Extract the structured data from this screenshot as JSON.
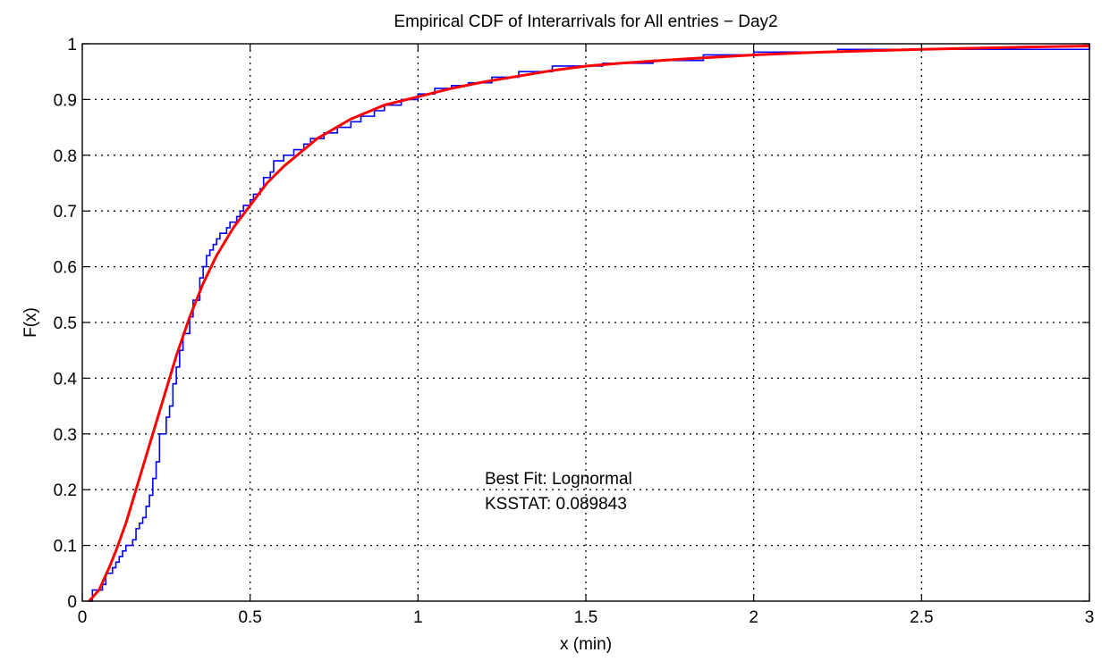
{
  "chart_data": {
    "type": "line",
    "title": "Empirical CDF of Interarrivals for All entries − Day2",
    "xlabel": "x (min)",
    "ylabel": "F(x)",
    "xlim": [
      0,
      3
    ],
    "ylim": [
      0,
      1
    ],
    "grid": true,
    "xticks": [
      {
        "value": 0,
        "label": "0"
      },
      {
        "value": 0.5,
        "label": "0.5"
      },
      {
        "value": 1,
        "label": "1"
      },
      {
        "value": 1.5,
        "label": "1.5"
      },
      {
        "value": 2,
        "label": "2"
      },
      {
        "value": 2.5,
        "label": "2.5"
      },
      {
        "value": 3,
        "label": "3"
      }
    ],
    "yticks": [
      {
        "value": 0,
        "label": "0"
      },
      {
        "value": 0.1,
        "label": "0.1"
      },
      {
        "value": 0.2,
        "label": "0.2"
      },
      {
        "value": 0.3,
        "label": "0.3"
      },
      {
        "value": 0.4,
        "label": "0.4"
      },
      {
        "value": 0.5,
        "label": "0.5"
      },
      {
        "value": 0.6,
        "label": "0.6"
      },
      {
        "value": 0.7,
        "label": "0.7"
      },
      {
        "value": 0.8,
        "label": "0.8"
      },
      {
        "value": 0.9,
        "label": "0.9"
      },
      {
        "value": 1,
        "label": "1"
      }
    ],
    "annotations": [
      "Best Fit: Lognormal",
      "KSSTAT: 0.089843"
    ],
    "series": [
      {
        "kind": "step",
        "color": "#0000ff",
        "x": [
          0.02,
          0.03,
          0.06,
          0.07,
          0.09,
          0.1,
          0.11,
          0.12,
          0.13,
          0.15,
          0.16,
          0.17,
          0.18,
          0.19,
          0.2,
          0.21,
          0.22,
          0.23,
          0.25,
          0.26,
          0.27,
          0.28,
          0.29,
          0.3,
          0.32,
          0.33,
          0.35,
          0.36,
          0.37,
          0.38,
          0.39,
          0.4,
          0.41,
          0.43,
          0.44,
          0.46,
          0.47,
          0.48,
          0.5,
          0.51,
          0.53,
          0.54,
          0.56,
          0.57,
          0.6,
          0.63,
          0.66,
          0.68,
          0.72,
          0.76,
          0.8,
          0.83,
          0.87,
          0.9,
          0.95,
          1.0,
          1.05,
          1.1,
          1.15,
          1.22,
          1.3,
          1.4,
          1.55,
          1.7,
          1.85,
          2.0,
          2.25,
          3.0
        ],
        "y": [
          0.0,
          0.02,
          0.03,
          0.05,
          0.06,
          0.07,
          0.08,
          0.09,
          0.1,
          0.11,
          0.13,
          0.14,
          0.15,
          0.17,
          0.19,
          0.22,
          0.25,
          0.3,
          0.33,
          0.35,
          0.39,
          0.42,
          0.45,
          0.48,
          0.51,
          0.54,
          0.58,
          0.6,
          0.62,
          0.63,
          0.64,
          0.65,
          0.66,
          0.67,
          0.68,
          0.69,
          0.7,
          0.71,
          0.72,
          0.73,
          0.74,
          0.76,
          0.77,
          0.79,
          0.8,
          0.81,
          0.82,
          0.83,
          0.84,
          0.85,
          0.86,
          0.87,
          0.88,
          0.89,
          0.9,
          0.91,
          0.92,
          0.925,
          0.93,
          0.94,
          0.95,
          0.96,
          0.965,
          0.97,
          0.98,
          0.985,
          0.99,
          1.0
        ]
      },
      {
        "kind": "line",
        "color": "#ff0000",
        "x": [
          0.02,
          0.05,
          0.08,
          0.1,
          0.13,
          0.16,
          0.2,
          0.24,
          0.28,
          0.32,
          0.36,
          0.4,
          0.45,
          0.5,
          0.55,
          0.6,
          0.65,
          0.7,
          0.8,
          0.9,
          1.0,
          1.1,
          1.2,
          1.3,
          1.4,
          1.5,
          1.6,
          1.8,
          2.0,
          2.2,
          2.5,
          2.8,
          3.0
        ],
        "y": [
          0.0,
          0.02,
          0.06,
          0.09,
          0.14,
          0.2,
          0.28,
          0.36,
          0.44,
          0.51,
          0.57,
          0.62,
          0.67,
          0.71,
          0.75,
          0.78,
          0.805,
          0.83,
          0.865,
          0.89,
          0.905,
          0.92,
          0.932,
          0.942,
          0.952,
          0.96,
          0.965,
          0.973,
          0.98,
          0.985,
          0.99,
          0.994,
          0.996
        ]
      }
    ]
  }
}
